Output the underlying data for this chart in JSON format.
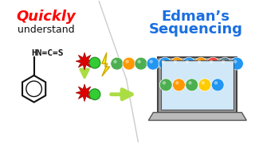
{
  "title_left_bold": "Quickly",
  "title_left_normal": "understand",
  "title_right_line1": "Edman’s",
  "title_right_line2": "Sequencing",
  "title_left_color": "#ff0000",
  "title_right_color": "#1a6fe0",
  "bg_color": "#ffffff",
  "chain_colors": [
    "#4caf50",
    "#ff9800",
    "#4caf50",
    "#2196f3",
    "#2196f3",
    "#ff9800",
    "#2196f3",
    "#ff9800",
    "#f44336",
    "#607d8b",
    "#2196f3"
  ],
  "screen_colors": [
    "#4caf50",
    "#ff9800",
    "#4caf50",
    "#ffcc00",
    "#2196f3"
  ],
  "star_color": "#dd0000",
  "green_dot_color": "#33cc33",
  "arrow_down_color": "#aadd44",
  "arrow_right_color": "#aadd44",
  "benzene_color": "#111111",
  "lightning_color": "#ffee00",
  "lightning_edge": "#ccaa00",
  "formula_color": "#111111",
  "divider_color": "#cccccc",
  "laptop_body": "#c8c8c8",
  "laptop_screen_bg": "#d0e8f8",
  "laptop_base": "#aaaaaa"
}
